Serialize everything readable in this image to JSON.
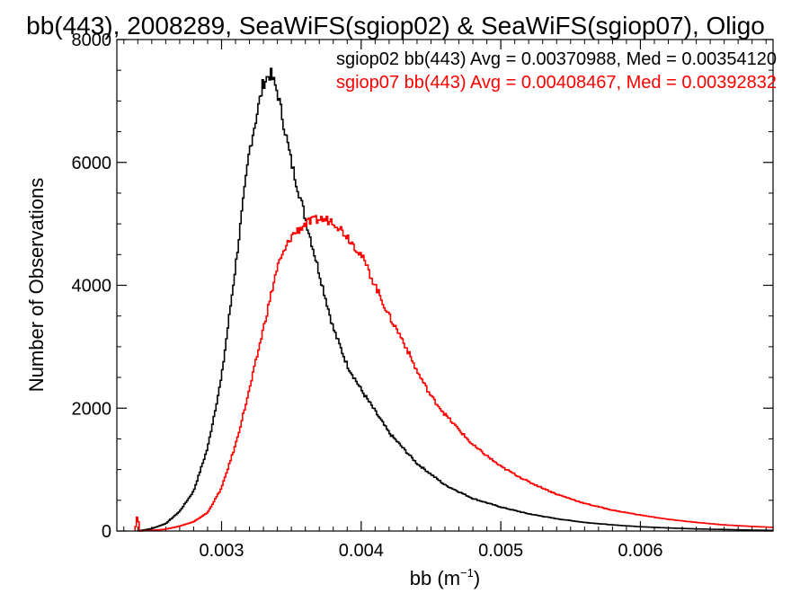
{
  "chart_data": {
    "type": "line",
    "title": "bb(443), 2008289, SeaWiFS(sgiop02) & SeaWiFS(sgiop07), Oligo",
    "xlabel": "bb (m",
    "xlabel_sup": "−1",
    "xlabel_end": ")",
    "ylabel": "Number of Observations",
    "xlim": [
      0.00225,
      0.00695
    ],
    "ylim": [
      0,
      8000
    ],
    "xticks": [
      {
        "value": 0.003,
        "label": "0.003"
      },
      {
        "value": 0.004,
        "label": "0.004"
      },
      {
        "value": 0.005,
        "label": "0.005"
      },
      {
        "value": 0.006,
        "label": "0.006"
      }
    ],
    "yticks": [
      {
        "value": 0,
        "label": "0"
      },
      {
        "value": 2000,
        "label": "2000"
      },
      {
        "value": 4000,
        "label": "4000"
      },
      {
        "value": 6000,
        "label": "6000"
      },
      {
        "value": 8000,
        "label": "8000"
      }
    ],
    "grid": false,
    "legend": "top-right",
    "series": [
      {
        "name": "sgiop02",
        "color": "#000000",
        "label": "sgiop02 bb(443) Avg = 0.00370988, Med = 0.00354120",
        "points": [
          [
            0.0024,
            0
          ],
          [
            0.0025,
            40
          ],
          [
            0.0026,
            120
          ],
          [
            0.0027,
            320
          ],
          [
            0.0028,
            650
          ],
          [
            0.0029,
            1350
          ],
          [
            0.003,
            2500
          ],
          [
            0.0031,
            4300
          ],
          [
            0.0032,
            6200
          ],
          [
            0.0033,
            7300
          ],
          [
            0.00335,
            7450
          ],
          [
            0.0034,
            7150
          ],
          [
            0.0035,
            6000
          ],
          [
            0.0036,
            5100
          ],
          [
            0.0037,
            4200
          ],
          [
            0.0038,
            3300
          ],
          [
            0.0039,
            2700
          ],
          [
            0.004,
            2300
          ],
          [
            0.0042,
            1600
          ],
          [
            0.0044,
            1100
          ],
          [
            0.0046,
            750
          ],
          [
            0.0048,
            530
          ],
          [
            0.005,
            390
          ],
          [
            0.0052,
            280
          ],
          [
            0.0054,
            200
          ],
          [
            0.0056,
            140
          ],
          [
            0.0058,
            100
          ],
          [
            0.006,
            70
          ],
          [
            0.0062,
            50
          ],
          [
            0.0064,
            35
          ],
          [
            0.0066,
            25
          ],
          [
            0.0068,
            15
          ],
          [
            0.00695,
            10
          ]
        ]
      },
      {
        "name": "sgiop07",
        "color": "#ff0000",
        "label": "sgiop07 bb(443) Avg = 0.00408467, Med = 0.00392832",
        "points": [
          [
            0.00238,
            0
          ],
          [
            0.0024,
            300
          ],
          [
            0.00241,
            0
          ],
          [
            0.0025,
            10
          ],
          [
            0.0026,
            30
          ],
          [
            0.0027,
            80
          ],
          [
            0.0028,
            150
          ],
          [
            0.0029,
            300
          ],
          [
            0.003,
            700
          ],
          [
            0.0031,
            1400
          ],
          [
            0.0032,
            2300
          ],
          [
            0.0033,
            3300
          ],
          [
            0.0034,
            4300
          ],
          [
            0.0035,
            4800
          ],
          [
            0.0036,
            5000
          ],
          [
            0.0037,
            5080
          ],
          [
            0.0038,
            5050
          ],
          [
            0.0039,
            4800
          ],
          [
            0.004,
            4500
          ],
          [
            0.0041,
            4000
          ],
          [
            0.0042,
            3500
          ],
          [
            0.0043,
            3100
          ],
          [
            0.0044,
            2600
          ],
          [
            0.0045,
            2200
          ],
          [
            0.0046,
            1900
          ],
          [
            0.0047,
            1650
          ],
          [
            0.0048,
            1400
          ],
          [
            0.005,
            1050
          ],
          [
            0.0052,
            800
          ],
          [
            0.0054,
            600
          ],
          [
            0.0056,
            450
          ],
          [
            0.0058,
            340
          ],
          [
            0.006,
            260
          ],
          [
            0.0062,
            190
          ],
          [
            0.0064,
            140
          ],
          [
            0.0066,
            100
          ],
          [
            0.0068,
            75
          ],
          [
            0.00695,
            60
          ]
        ]
      }
    ]
  }
}
